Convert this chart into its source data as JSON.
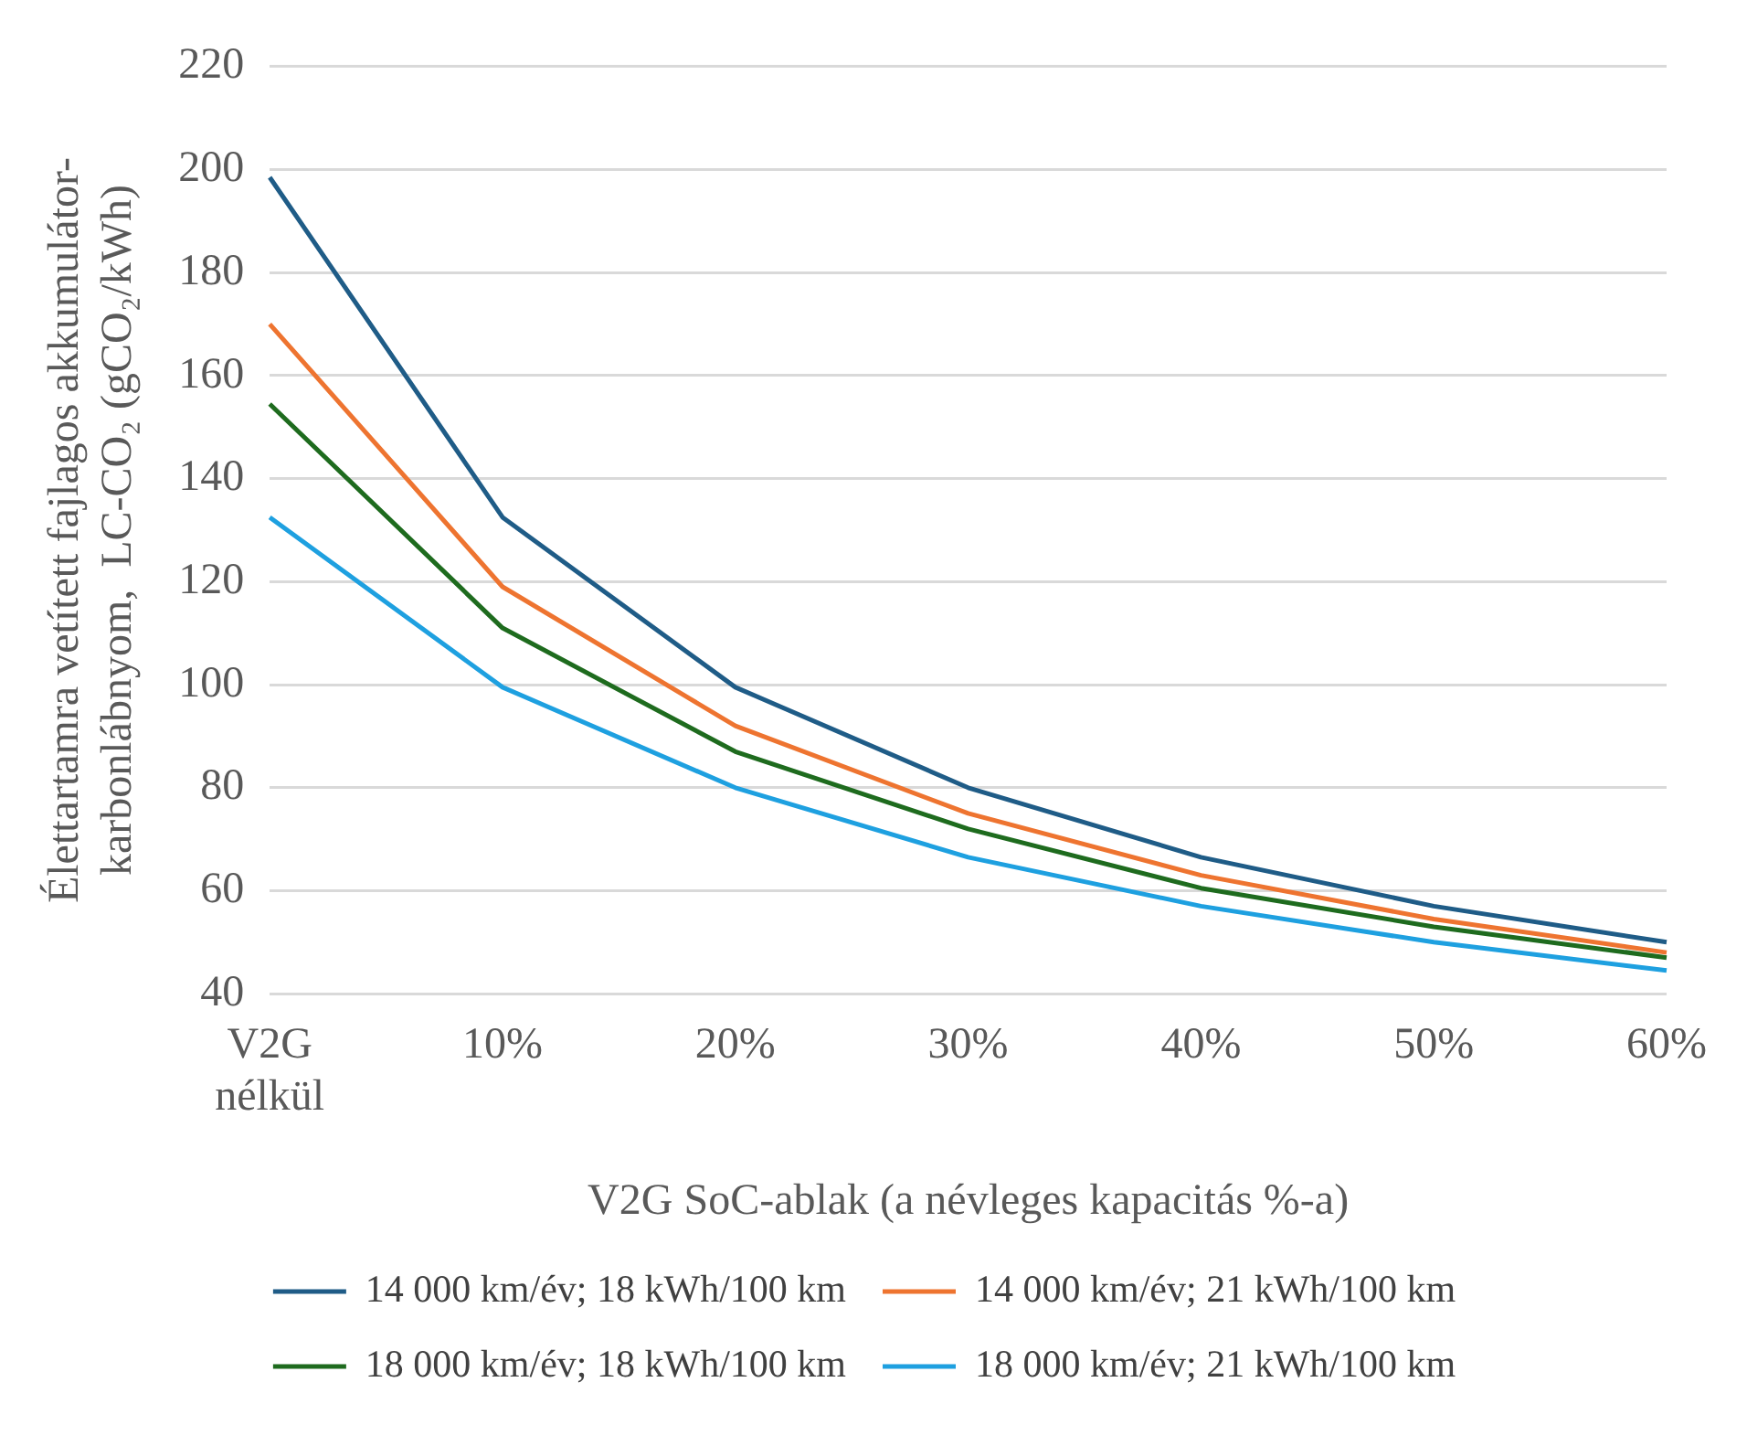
{
  "chart_data": {
    "type": "line",
    "xlabel": "V2G SoC-ablak (a névleges kapacitás %-a)",
    "ylabel": "Élettartamra vetített fajlagos akkumulátor-\nkarbonlábnyom,  LC-CO₂ (gCO₂/kWh)",
    "categories": [
      "V2G\nnélkül",
      "10%",
      "20%",
      "30%",
      "40%",
      "50%",
      "60%"
    ],
    "series": [
      {
        "name": "14 000 km/év; 18 kWh/100 km",
        "color": "#1f5c87",
        "values": [
          198.5,
          132.5,
          99.5,
          80,
          66.5,
          57,
          50
        ]
      },
      {
        "name": "14 000 km/év; 21 kWh/100 km",
        "color": "#ee7430",
        "values": [
          170,
          119,
          92,
          75,
          63,
          54.5,
          48
        ]
      },
      {
        "name": "18 000 km/év; 18 kWh/100 km",
        "color": "#1e6b1e",
        "values": [
          154.5,
          111,
          87,
          72,
          60.5,
          53,
          47
        ]
      },
      {
        "name": "18 000 km/év; 21 kWh/100 km",
        "color": "#1ea0e0",
        "values": [
          132.5,
          99.5,
          80,
          66.5,
          57,
          50,
          44.5
        ]
      }
    ],
    "ylim": [
      40,
      220
    ],
    "yticks": [
      40,
      60,
      80,
      100,
      120,
      140,
      160,
      180,
      200,
      220
    ],
    "grid": "y",
    "legend": "bottom",
    "marker": "none",
    "line_style": "solid"
  }
}
